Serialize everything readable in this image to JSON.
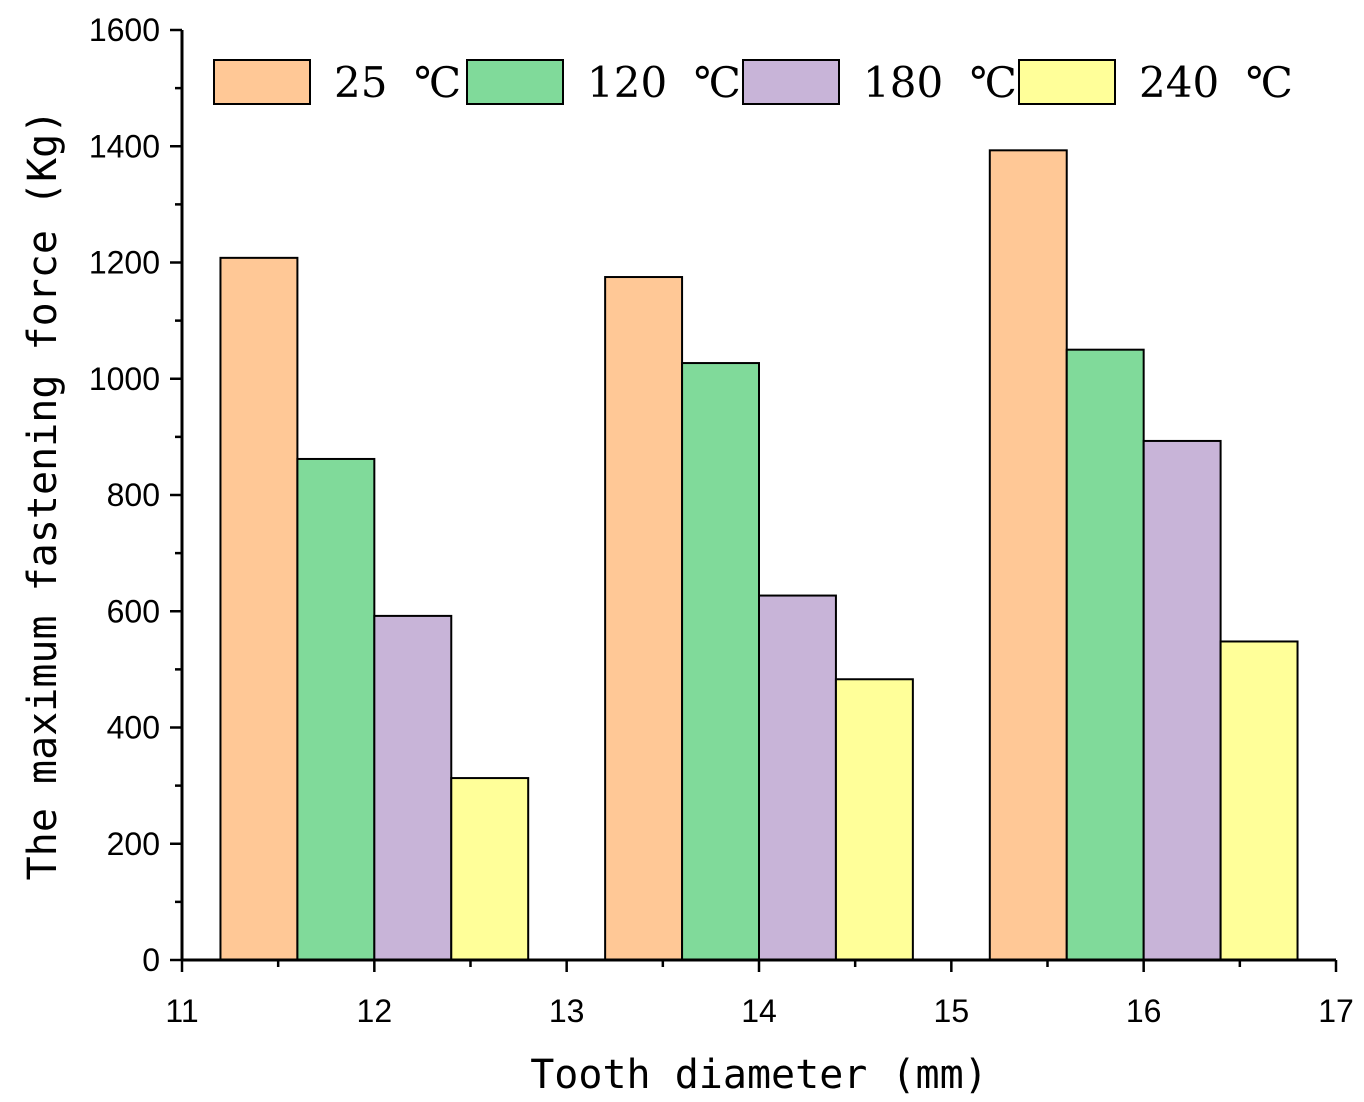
{
  "chart_data": {
    "type": "bar",
    "title": "",
    "xlabel": "Tooth diameter (mm)",
    "ylabel": "The maximum fastening force (Kg)",
    "xlim": [
      11,
      17
    ],
    "ylim": [
      0,
      1600
    ],
    "x_ticks": [
      11,
      12,
      13,
      14,
      15,
      16,
      17
    ],
    "y_ticks": [
      0,
      200,
      400,
      600,
      800,
      1000,
      1200,
      1400,
      1600
    ],
    "categories": [
      12,
      14,
      16
    ],
    "bar_width": 0.4,
    "legend_position": "top",
    "series": [
      {
        "name": "25  ℃",
        "color": "#FFC896",
        "values": [
          1208,
          1175,
          1393
        ]
      },
      {
        "name": "120  ℃",
        "color": "#80DA9A",
        "values": [
          862,
          1027,
          1050
        ]
      },
      {
        "name": "180  ℃",
        "color": "#C8B4D8",
        "values": [
          592,
          627,
          893
        ]
      },
      {
        "name": "240  ℃",
        "color": "#FFFF99",
        "values": [
          313,
          483,
          548
        ]
      }
    ]
  }
}
